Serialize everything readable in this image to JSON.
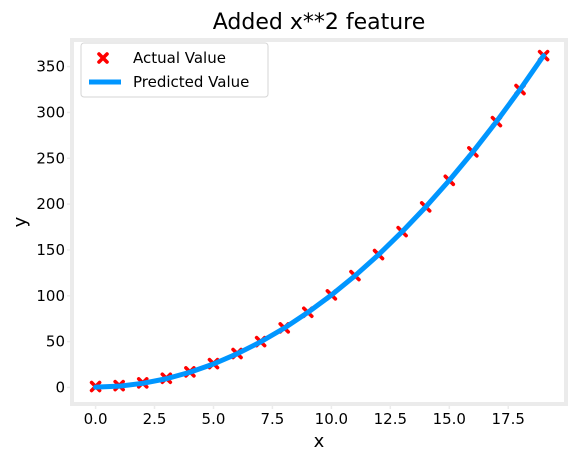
{
  "chart_data": {
    "type": "scatter",
    "title": "Added x**2 feature",
    "xlabel": "x",
    "ylabel": "y",
    "xlim": [
      -1.0,
      19.95
    ],
    "ylim": [
      -18.05,
      379.05
    ],
    "x_ticks": [
      0.0,
      2.5,
      5.0,
      7.5,
      10.0,
      12.5,
      15.0,
      17.5
    ],
    "x_tick_labels": [
      "0.0",
      "2.5",
      "5.0",
      "7.5",
      "10.0",
      "12.5",
      "15.0",
      "17.5"
    ],
    "y_ticks": [
      0,
      50,
      100,
      150,
      200,
      250,
      300,
      350
    ],
    "y_tick_labels": [
      "0",
      "50",
      "100",
      "150",
      "200",
      "250",
      "300",
      "350"
    ],
    "grid": false,
    "legend_position": "top-left",
    "series": [
      {
        "name": "Actual Value",
        "kind": "scatter",
        "marker": "x-filled",
        "color": "#ff0000",
        "x": [
          0,
          1,
          2,
          3,
          4,
          5,
          6,
          7,
          8,
          9,
          10,
          11,
          12,
          13,
          14,
          15,
          16,
          17,
          18,
          19
        ],
        "y": [
          1,
          2,
          5,
          10,
          17,
          26,
          37,
          50,
          65,
          82,
          101,
          122,
          145,
          170,
          197,
          226,
          257,
          290,
          325,
          362
        ]
      },
      {
        "name": "Predicted Value",
        "kind": "line",
        "color": "#0096ff",
        "x": [
          0,
          1,
          2,
          3,
          4,
          5,
          6,
          7,
          8,
          9,
          10,
          11,
          12,
          13,
          14,
          15,
          16,
          17,
          18,
          19
        ],
        "y": [
          0.3,
          1.4,
          4.5,
          9.5,
          16.6,
          25.6,
          36.7,
          49.7,
          64.7,
          81.8,
          100.8,
          121.8,
          144.8,
          169.9,
          196.9,
          225.9,
          256.9,
          290.0,
          325.0,
          362.0
        ]
      }
    ]
  },
  "colors": {
    "frame": "#ebebeb",
    "text": "#000000"
  }
}
